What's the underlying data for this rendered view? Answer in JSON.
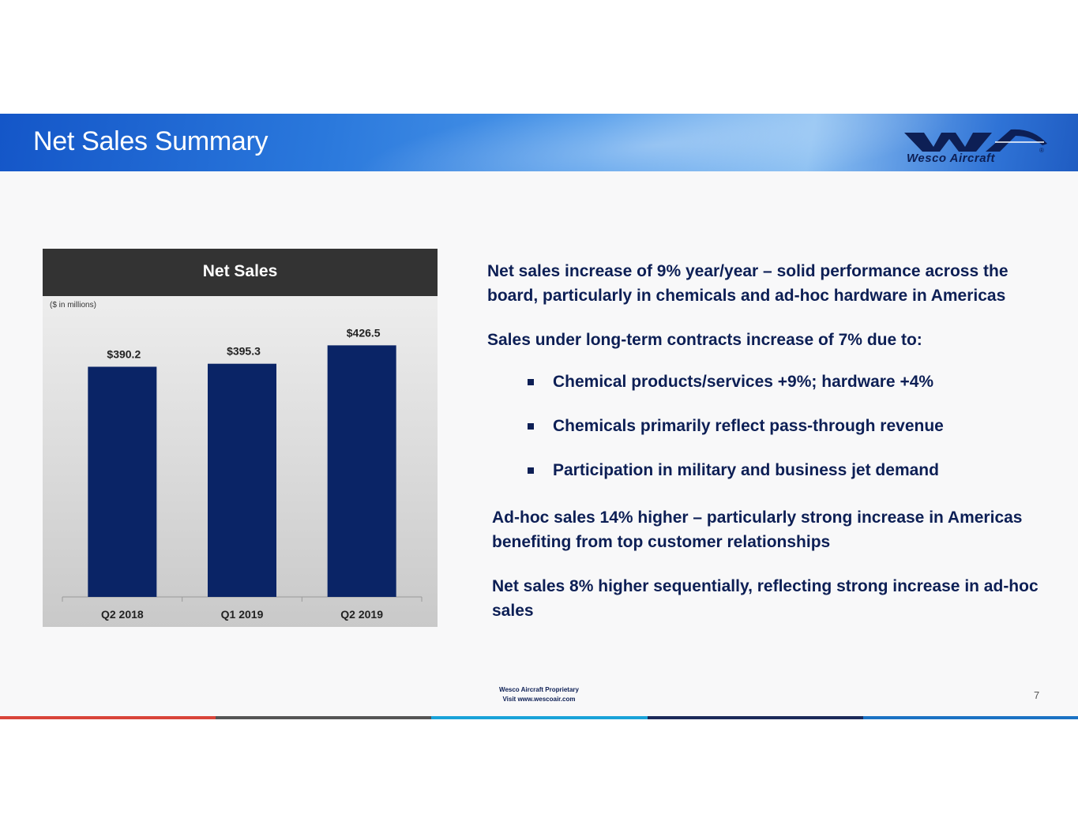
{
  "header": {
    "title": "Net Sales Summary",
    "logo_text": "Wesco Aircraft",
    "logo_reg": "®"
  },
  "chart_data": {
    "type": "bar",
    "title": "Net Sales",
    "unit_note": "($ in millions)",
    "categories": [
      "Q2 2018",
      "Q1 2019",
      "Q2 2019"
    ],
    "values": [
      390.2,
      395.3,
      426.5
    ],
    "data_labels": [
      "$390.2",
      "$395.3",
      "$426.5"
    ],
    "bar_color": "#0a2466",
    "header_color": "#333333",
    "xlabel": "",
    "ylabel": "",
    "ylim": [
      0,
      510
    ],
    "grid": false
  },
  "bullets": {
    "p1": "Net sales increase of 9% year/year – solid performance across the board, particularly in chemicals and ad-hoc hardware in Americas",
    "p2": "Sales under long-term contracts increase of 7% due to:",
    "sub1": "Chemical products/services +9%; hardware +4%",
    "sub2": "Chemicals primarily reflect pass-through revenue",
    "sub3": "Participation in military and business jet demand",
    "p3": "Ad-hoc sales 14% higher – particularly strong increase in Americas benefiting from top customer relationships",
    "p4": "Net sales 8% higher sequentially, reflecting strong increase in ad-hoc sales"
  },
  "footer": {
    "proprietary": "Wesco Aircraft Proprietary",
    "website": "Visit www.wescoair.com",
    "page_number": "7"
  },
  "colors": {
    "text_navy": "#0d1f55",
    "stripe_red": "#d9443a",
    "stripe_gray": "#555555",
    "stripe_cyan": "#1aa3d9",
    "stripe_navy": "#1c2a5a",
    "stripe_blue": "#1b72c4"
  }
}
